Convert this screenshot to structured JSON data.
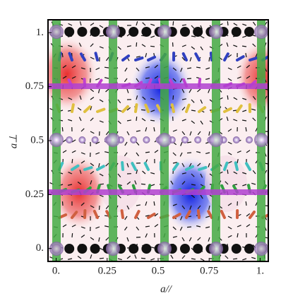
{
  "chart_data": {
    "type": "vector-field",
    "xlabel": "a//",
    "ylabel": "a⊥",
    "xlim": [
      -0.04,
      1.04
    ],
    "ylim": [
      -0.06,
      1.06
    ],
    "xticks": [
      {
        "value": 0,
        "label": "0."
      },
      0.25,
      0.5,
      0.75,
      {
        "value": 1,
        "label": "1."
      }
    ],
    "yticks": [
      {
        "value": 0,
        "label": "0."
      },
      0.25,
      0.5,
      0.75,
      {
        "value": 1,
        "label": "1."
      }
    ]
  }
}
